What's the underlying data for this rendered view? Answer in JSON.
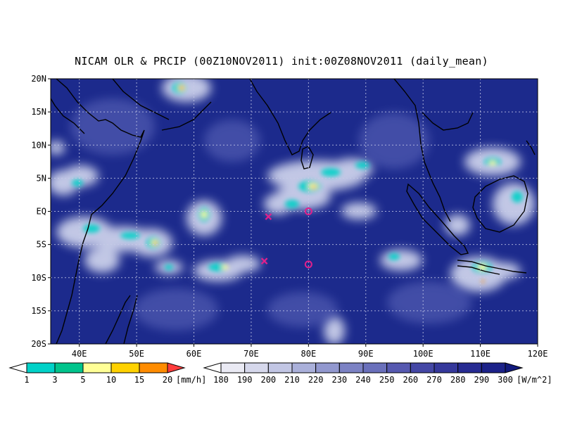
{
  "title": "NICAM OLR & PRCIP (00Z10NOV2011) init:00Z08NOV2011 (daily_mean)",
  "map": {
    "lon_range": [
      35,
      120
    ],
    "lat_range": [
      -20,
      20
    ],
    "lat_ticks": [
      {
        "value": 20,
        "label": "20N"
      },
      {
        "value": 15,
        "label": "15N"
      },
      {
        "value": 10,
        "label": "10N"
      },
      {
        "value": 5,
        "label": "5N"
      },
      {
        "value": 0,
        "label": "EQ"
      },
      {
        "value": -5,
        "label": "5S"
      },
      {
        "value": -10,
        "label": "10S"
      },
      {
        "value": -15,
        "label": "15S"
      },
      {
        "value": -20,
        "label": "20S"
      }
    ],
    "lon_ticks": [
      {
        "value": 40,
        "label": "40E"
      },
      {
        "value": 50,
        "label": "50E"
      },
      {
        "value": 60,
        "label": "60E"
      },
      {
        "value": 70,
        "label": "70E"
      },
      {
        "value": 80,
        "label": "80E"
      },
      {
        "value": 90,
        "label": "90E"
      },
      {
        "value": 100,
        "label": "100E"
      },
      {
        "value": 110,
        "label": "110E"
      },
      {
        "value": 120,
        "label": "120E"
      }
    ],
    "grid": true,
    "background_color": "#1c2a8c",
    "markers": [
      {
        "type": "x",
        "lon": 73,
        "lat": -0.8,
        "color": "#e0208c"
      },
      {
        "type": "x",
        "lon": 72.3,
        "lat": -7.5,
        "color": "#e0208c"
      },
      {
        "type": "circle",
        "lon": 80,
        "lat": 0,
        "color": "#e0208c"
      },
      {
        "type": "circle",
        "lon": 80,
        "lat": -8,
        "color": "#e0208c"
      }
    ]
  },
  "colorbar_precip": {
    "unit": "[mm/h]",
    "levels": [
      "1",
      "3",
      "5",
      "10",
      "15",
      "20"
    ],
    "colors": [
      "#ffffff",
      "#00d2c8",
      "#00c48c",
      "#ffff96",
      "#ffd200",
      "#ff8c00",
      "#ff3c3c"
    ]
  },
  "colorbar_olr": {
    "unit": "[W/m^2]",
    "levels": [
      "180",
      "190",
      "200",
      "210",
      "220",
      "230",
      "240",
      "250",
      "260",
      "270",
      "280",
      "290",
      "300"
    ],
    "colors": [
      "#ffffff",
      "#eaeaf4",
      "#d6d8ec",
      "#c2c6e4",
      "#aab0da",
      "#9298cf",
      "#7c82c4",
      "#6a70bb",
      "#5659b0",
      "#4447a5",
      "#35389b",
      "#272b92",
      "#1c2289",
      "#121a7d"
    ]
  }
}
